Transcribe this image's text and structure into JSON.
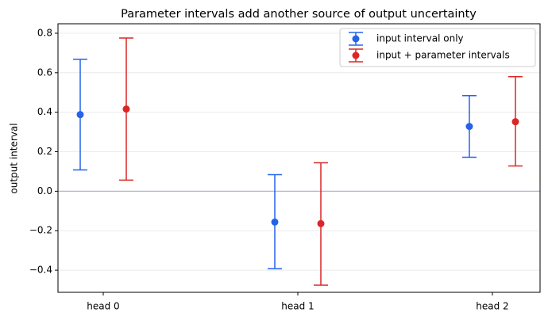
{
  "chart_data": {
    "type": "errorbar",
    "title": "Parameter intervals add another source of output uncertainty",
    "y_label": "output interval",
    "categories": [
      "head 0",
      "head 1",
      "head 2"
    ],
    "series": [
      {
        "name": "input interval only",
        "color": "#2563eb",
        "values": [
          0.388,
          -0.156,
          0.328
        ],
        "lower": [
          0.108,
          -0.392,
          0.172
        ],
        "upper": [
          0.668,
          0.084,
          0.484
        ]
      },
      {
        "name": "input + parameter intervals",
        "color": "#dc2626",
        "values": [
          0.416,
          -0.164,
          0.352
        ],
        "lower": [
          0.056,
          -0.476,
          0.128
        ],
        "upper": [
          0.776,
          0.144,
          0.58
        ]
      }
    ],
    "ylim": [
      -0.512,
      0.848
    ],
    "yticks": [
      {
        "value": -0.4,
        "label": "−0.4"
      },
      {
        "value": -0.2,
        "label": "−0.2"
      },
      {
        "value": 0,
        "label": "0.0"
      },
      0.2,
      0.4,
      0.6,
      0.8
    ],
    "grid": true,
    "zero_line": true,
    "legend": "upper-right"
  }
}
